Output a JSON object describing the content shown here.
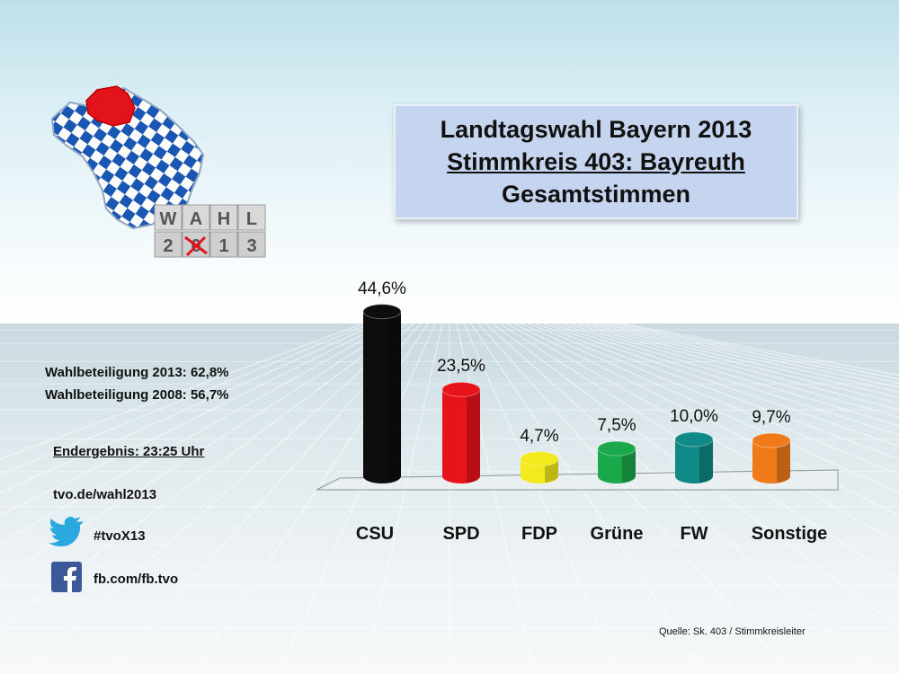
{
  "title": {
    "line1": "Landtagswahl Bayern 2013",
    "line2": "Stimmkreis 403: Bayreuth",
    "line3": "Gesamtstimmen"
  },
  "logo": {
    "letters_top": [
      "W",
      "A",
      "H",
      "L"
    ],
    "letters_bottom": [
      "2",
      "0",
      "1",
      "3"
    ],
    "colors": {
      "bavaria_blue": "#1a56b4",
      "highlight_red": "#e3131b"
    }
  },
  "info": {
    "turnout_2013": "Wahlbeteiligung 2013: 62,8%",
    "turnout_2008": "Wahlbeteiligung 2008: 56,7%",
    "final_result": "Endergebnis: 23:25 Uhr",
    "website": "tvo.de/wahl2013",
    "twitter_tag": "#tvoX13",
    "facebook": "fb.com/fb.tvo"
  },
  "source": "Quelle: Sk. 403 / Stimmkreisleiter",
  "chart_data": {
    "type": "bar",
    "categories": [
      "CSU",
      "SPD",
      "FDP",
      "Grüne",
      "FW",
      "Sonstige"
    ],
    "values": [
      44.6,
      23.5,
      4.7,
      7.5,
      10.0,
      9.7
    ],
    "value_labels": [
      "44,6%",
      "23,5%",
      "4,7%",
      "7,5%",
      "10,0%",
      "9,7%"
    ],
    "colors": [
      "#0d0d0d",
      "#e8141b",
      "#f2ea1c",
      "#1aa84a",
      "#0f8a86",
      "#f07a1a"
    ],
    "ylim": [
      0,
      45
    ],
    "grid": false,
    "legend": "none"
  }
}
